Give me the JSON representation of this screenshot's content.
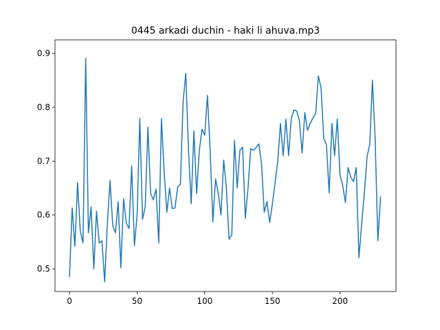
{
  "chart_data": {
    "type": "line",
    "title": "0445 arkadi duchin - haki li ahuva.mp3",
    "x": [
      0,
      2,
      4,
      6,
      8,
      10,
      12,
      14,
      16,
      18,
      20,
      22,
      24,
      26,
      28,
      30,
      32,
      34,
      36,
      38,
      40,
      42,
      44,
      46,
      48,
      50,
      52,
      54,
      56,
      58,
      60,
      62,
      64,
      66,
      68,
      70,
      72,
      74,
      76,
      78,
      80,
      82,
      84,
      86,
      88,
      90,
      92,
      94,
      96,
      98,
      100,
      102,
      104,
      106,
      108,
      110,
      112,
      114,
      116,
      118,
      120,
      122,
      124,
      126,
      128,
      130,
      132,
      134,
      136,
      138,
      140,
      142,
      144,
      146,
      148,
      150,
      152,
      154,
      156,
      158,
      160,
      162,
      164,
      166,
      168,
      170,
      172,
      174,
      176,
      178,
      180,
      182,
      184,
      186,
      188,
      190,
      192,
      194,
      196,
      198,
      200,
      202,
      204,
      206,
      208,
      210,
      212,
      214,
      216,
      218,
      220,
      222,
      224,
      226,
      228,
      230
    ],
    "series": [
      {
        "color": "#1f77b4",
        "values": [
          0.485,
          0.613,
          0.542,
          0.66,
          0.57,
          0.548,
          0.891,
          0.567,
          0.615,
          0.5,
          0.607,
          0.548,
          0.552,
          0.476,
          0.583,
          0.664,
          0.58,
          0.567,
          0.625,
          0.502,
          0.63,
          0.585,
          0.575,
          0.691,
          0.543,
          0.6,
          0.779,
          0.592,
          0.615,
          0.763,
          0.64,
          0.628,
          0.648,
          0.548,
          0.779,
          0.68,
          0.605,
          0.65,
          0.612,
          0.613,
          0.652,
          0.657,
          0.81,
          0.863,
          0.72,
          0.621,
          0.756,
          0.64,
          0.72,
          0.759,
          0.748,
          0.822,
          0.72,
          0.587,
          0.667,
          0.64,
          0.6,
          0.702,
          0.65,
          0.555,
          0.563,
          0.738,
          0.65,
          0.72,
          0.726,
          0.594,
          0.65,
          0.723,
          0.72,
          0.725,
          0.732,
          0.695,
          0.605,
          0.625,
          0.586,
          0.62,
          0.66,
          0.7,
          0.77,
          0.71,
          0.778,
          0.71,
          0.78,
          0.795,
          0.793,
          0.775,
          0.715,
          0.79,
          0.757,
          0.77,
          0.78,
          0.788,
          0.858,
          0.836,
          0.742,
          0.73,
          0.641,
          0.77,
          0.71,
          0.778,
          0.675,
          0.655,
          0.623,
          0.688,
          0.67,
          0.662,
          0.688,
          0.521,
          0.583,
          0.641,
          0.708,
          0.731,
          0.85,
          0.74,
          0.552,
          0.634
        ]
      }
    ],
    "xlim": [
      -10.7,
      241.4
    ],
    "ylim": [
      0.458,
      0.925
    ],
    "xticks": [
      0,
      50,
      100,
      150,
      200
    ],
    "yticks": [
      0.5,
      0.6,
      0.7,
      0.8,
      0.9
    ]
  }
}
